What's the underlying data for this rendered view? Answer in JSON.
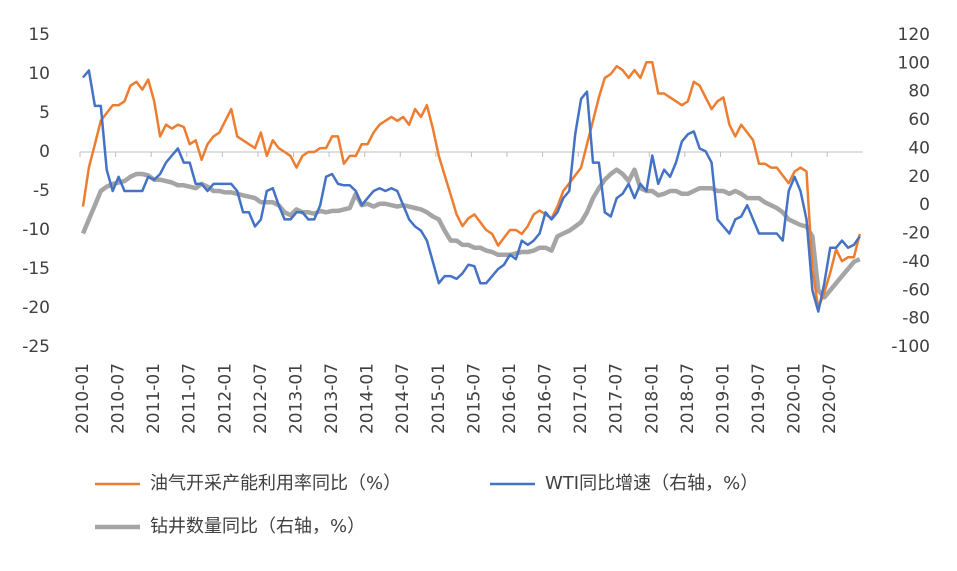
{
  "chart_data": {
    "type": "line",
    "categories": [
      "2010-01",
      null,
      null,
      null,
      null,
      null,
      "2010-07",
      null,
      null,
      null,
      null,
      null,
      "2011-01",
      null,
      null,
      null,
      null,
      null,
      "2011-07",
      null,
      null,
      null,
      null,
      null,
      "2012-01",
      null,
      null,
      null,
      null,
      null,
      "2012-07",
      null,
      null,
      null,
      null,
      null,
      "2013-01",
      null,
      null,
      null,
      null,
      null,
      "2013-07",
      null,
      null,
      null,
      null,
      null,
      "2014-01",
      null,
      null,
      null,
      null,
      null,
      "2014-07",
      null,
      null,
      null,
      null,
      null,
      "2015-01",
      null,
      null,
      null,
      null,
      null,
      "2015-07",
      null,
      null,
      null,
      null,
      null,
      "2016-01",
      null,
      null,
      null,
      null,
      null,
      "2016-07",
      null,
      null,
      null,
      null,
      null,
      "2017-01",
      null,
      null,
      null,
      null,
      null,
      "2017-07",
      null,
      null,
      null,
      null,
      null,
      "2018-01",
      null,
      null,
      null,
      null,
      null,
      "2018-07",
      null,
      null,
      null,
      null,
      null,
      "2019-01",
      null,
      null,
      null,
      null,
      null,
      "2019-07",
      null,
      null,
      null,
      null,
      null,
      "2020-01",
      null,
      null,
      null,
      null,
      null,
      "2020-07",
      null,
      null,
      null,
      null,
      null
    ],
    "ylim": [
      -25,
      15
    ],
    "yticks": [
      -25,
      -20,
      -15,
      -10,
      -5,
      0,
      5,
      10,
      15
    ],
    "y2lim": [
      -100,
      120
    ],
    "y2ticks": [
      -100,
      -80,
      -60,
      -40,
      -20,
      0,
      20,
      40,
      60,
      80,
      100,
      120
    ],
    "series": [
      {
        "name": "油气开采产能利用率同比（%）",
        "color": "#ED7D31",
        "width": 2.5,
        "values": [
          -7,
          -2,
          1,
          4,
          5,
          6,
          6,
          6.5,
          8.5,
          9,
          8,
          9.3,
          6.5,
          2,
          3.5,
          3,
          3.5,
          3.2,
          1,
          1.5,
          -1,
          1,
          2,
          2.5,
          4,
          5.5,
          2,
          1.5,
          1,
          0.5,
          2.5,
          -0.5,
          1.5,
          0.5,
          0,
          -0.5,
          -2,
          -0.5,
          0,
          0,
          0.5,
          0.5,
          2,
          2,
          -1.5,
          -0.5,
          -0.5,
          1,
          1,
          2.5,
          3.5,
          4,
          4.5,
          4,
          4.5,
          3.5,
          5.5,
          4.5,
          6,
          3,
          -0.5,
          -3,
          -5.5,
          -8,
          -9.5,
          -8.5,
          -8,
          -9,
          -10,
          -10.5,
          -12,
          -11,
          -10,
          -10,
          -10.5,
          -9.5,
          -8,
          -7.5,
          -8,
          -8.5,
          -7,
          -5,
          -4,
          -3,
          -2,
          1,
          4,
          7,
          9.5,
          10,
          11,
          10.5,
          9.5,
          10.5,
          9.5,
          11.5,
          11.5,
          7.5,
          7.5,
          7,
          6.5,
          6,
          6.5,
          9,
          8.5,
          7,
          5.5,
          6.5,
          7,
          3.5,
          2,
          3.5,
          2.5,
          1.5,
          -1.5,
          -1.5,
          -2,
          -2,
          -3,
          -4,
          -2.5,
          -2,
          -2.5,
          -15,
          -20,
          -18,
          -15.5,
          -12.5,
          -14,
          -13.5,
          -13.5,
          -10.5
        ]
      },
      {
        "name": "WTI同比增速（右轴，%）",
        "color": "#4472C4",
        "width": 2.5,
        "axis": "y2",
        "values": [
          90,
          95,
          70,
          70,
          25,
          10,
          20,
          10,
          10,
          10,
          10,
          20,
          18,
          22,
          30,
          35,
          40,
          30,
          30,
          15,
          15,
          10,
          15,
          15,
          15,
          15,
          10,
          -5,
          -5,
          -15,
          -10,
          10,
          12,
          0,
          -10,
          -10,
          -5,
          -5,
          -10,
          -10,
          0,
          20,
          22,
          15,
          14,
          14,
          10,
          0,
          5,
          10,
          12,
          10,
          12,
          10,
          0,
          -10,
          -15,
          -18,
          -25,
          -40,
          -55,
          -50,
          -50,
          -52,
          -48,
          -42,
          -43,
          -55,
          -55,
          -50,
          -45,
          -42,
          -35,
          -38,
          -25,
          -28,
          -25,
          -20,
          -5,
          -10,
          -5,
          5,
          10,
          50,
          75,
          80,
          30,
          30,
          -5,
          -8,
          5,
          8,
          15,
          5,
          15,
          10,
          35,
          15,
          25,
          20,
          30,
          45,
          50,
          52,
          40,
          38,
          30,
          -10,
          -15,
          -20,
          -10,
          -8,
          0,
          -10,
          -20,
          -20,
          -20,
          -20,
          -25,
          10,
          20,
          10,
          -10,
          -60,
          -75,
          -55,
          -30,
          -30,
          -25,
          -30,
          -28,
          -22
        ]
      },
      {
        "name": "钻井数量同比（右轴，%）",
        "color": "#A5A5A5",
        "width": 4.5,
        "axis": "y2",
        "values": [
          -20,
          -10,
          0,
          10,
          13,
          15,
          16,
          17,
          20,
          22,
          22,
          21,
          18,
          18,
          17,
          16,
          14,
          14,
          13,
          12,
          15,
          13,
          10,
          10,
          9,
          9,
          8,
          7,
          6,
          5,
          2,
          2,
          2,
          0,
          -5,
          -7,
          -3,
          -5,
          -5,
          -6,
          -4,
          -5,
          -4,
          -4,
          -3,
          -2,
          8,
          0,
          1,
          -1,
          1,
          1,
          0,
          -1,
          0,
          -1,
          -2,
          -3,
          -5,
          -8,
          -10,
          -18,
          -25,
          -25,
          -28,
          -28,
          -30,
          -30,
          -32,
          -33,
          -35,
          -35,
          -35,
          -34,
          -33,
          -33,
          -32,
          -30,
          -30,
          -32,
          -22,
          -20,
          -18,
          -15,
          -12,
          -5,
          5,
          12,
          18,
          22,
          25,
          22,
          17,
          25,
          12,
          10,
          10,
          7,
          8,
          10,
          10,
          8,
          8,
          10,
          12,
          12,
          12,
          10,
          10,
          8,
          10,
          8,
          5,
          5,
          5,
          2,
          0,
          -2,
          -5,
          -10,
          -12,
          -14,
          -15,
          -22,
          -60,
          -65,
          -60,
          -55,
          -50,
          -45,
          -40,
          -38
        ]
      }
    ]
  }
}
